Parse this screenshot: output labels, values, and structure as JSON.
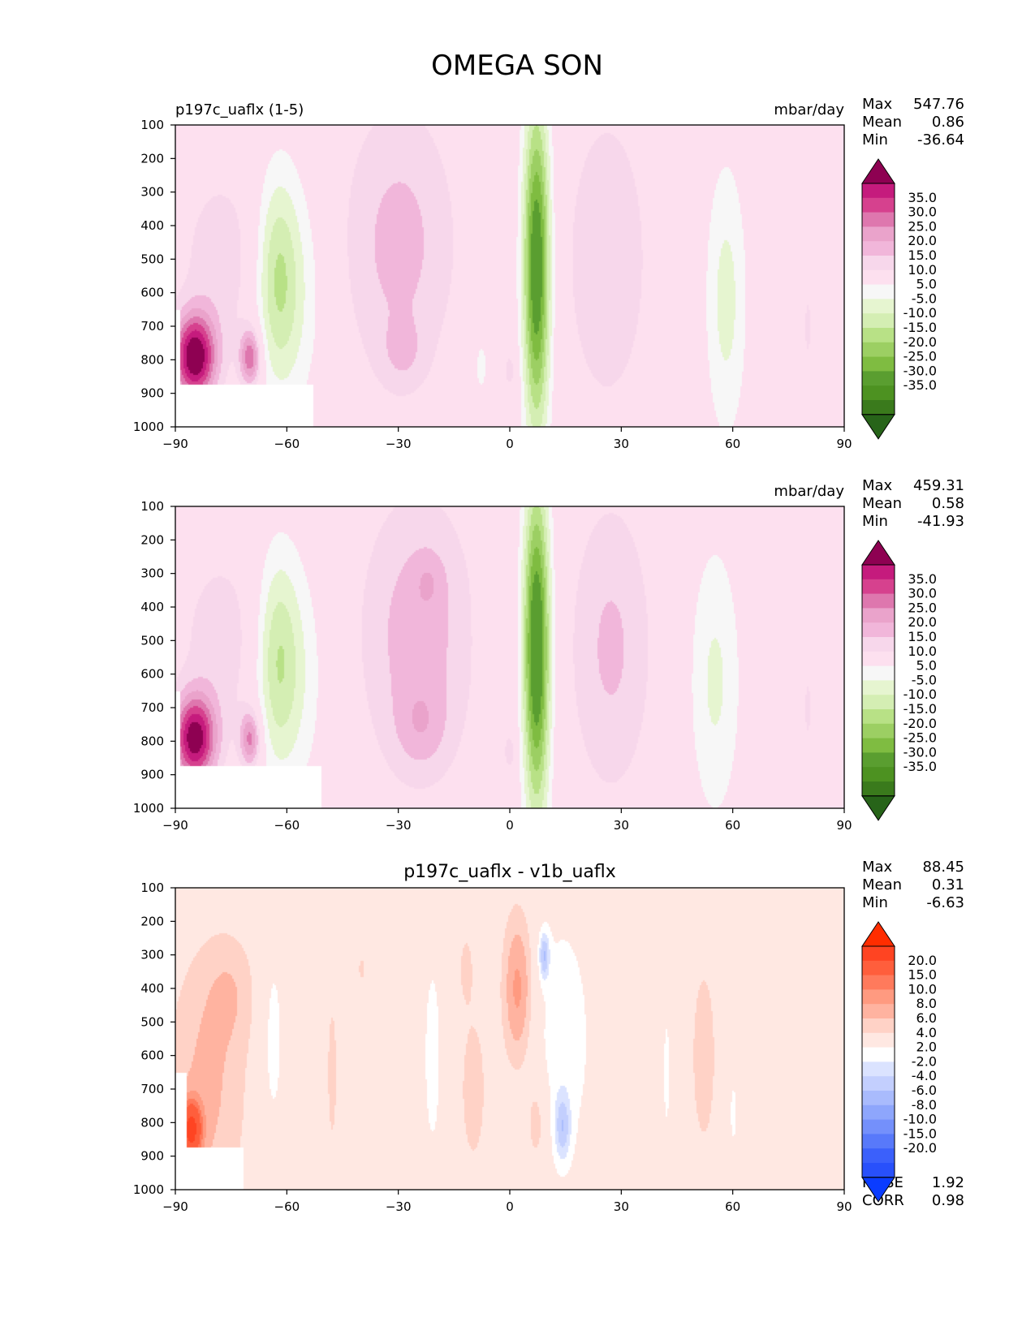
{
  "figure": {
    "title": "OMEGA SON"
  },
  "chart_data": [
    {
      "type": "heatmap",
      "title": "p197c_uaflx (1-5)",
      "units": "mbar/day",
      "stats": {
        "max_label": "Max",
        "max": "547.76",
        "mean_label": "Mean",
        "mean": "0.86",
        "min_label": "Min",
        "min": "-36.64"
      },
      "x_ticks": [
        "−90",
        "−60",
        "−30",
        "0",
        "30",
        "60",
        "90"
      ],
      "y_ticks": [
        "100",
        "200",
        "300",
        "400",
        "500",
        "600",
        "700",
        "800",
        "900",
        "1000"
      ],
      "xlim": [
        -90,
        90
      ],
      "ylim": [
        1000,
        100
      ],
      "colorbar": {
        "labels": [
          "35.0",
          "30.0",
          "25.0",
          "20.0",
          "15.0",
          "10.0",
          "5.0",
          "-5.0",
          "-10.0",
          "-15.0",
          "-20.0",
          "-25.0",
          "-30.0",
          "-35.0"
        ],
        "top_color": "#8e0152",
        "bottom_color": "#276419",
        "colors": [
          "#c51b7d",
          "#d6418e",
          "#de77ae",
          "#eaa3cb",
          "#f1b6da",
          "#f7d7eb",
          "#fde0ef",
          "#f7f7f7",
          "#e6f5d0",
          "#d4eeb3",
          "#b8e186",
          "#9ccf63",
          "#7fbc41",
          "#5a9e30",
          "#4d9221",
          "#3a7a1c"
        ]
      },
      "fields": [
        {
          "x": -85,
          "p": 790,
          "sx": 4,
          "sy": 90,
          "v": 40
        },
        {
          "x": -70,
          "p": 790,
          "sx": 2,
          "sy": 60,
          "v": 25
        },
        {
          "x": -78,
          "p": 500,
          "sx": 8,
          "sy": 200,
          "v": 8
        },
        {
          "x": -63,
          "p": 550,
          "sx": 4,
          "sy": 220,
          "v": -16
        },
        {
          "x": -58,
          "p": 600,
          "sx": 6,
          "sy": 260,
          "v": -9
        },
        {
          "x": -30,
          "p": 450,
          "sx": 11,
          "sy": 300,
          "v": 12
        },
        {
          "x": -29,
          "p": 780,
          "sx": 4,
          "sy": 70,
          "v": 6
        },
        {
          "x": -6,
          "p": 400,
          "sx": 2,
          "sy": 200,
          "v": -6
        },
        {
          "x": -8,
          "p": 820,
          "sx": 1.5,
          "sy": 70,
          "v": -7
        },
        {
          "x": 0,
          "p": 830,
          "sx": 1.5,
          "sy": 50,
          "v": 7
        },
        {
          "x": 7,
          "p": 520,
          "sx": 2.6,
          "sy": 350,
          "v": -42
        },
        {
          "x": 26,
          "p": 500,
          "sx": 8,
          "sy": 320,
          "v": 10
        },
        {
          "x": 58,
          "p": 620,
          "sx": 4,
          "sy": 300,
          "v": -12
        },
        {
          "x": 80,
          "p": 700,
          "sx": 1,
          "sy": 110,
          "v": 6
        }
      ]
    },
    {
      "type": "heatmap",
      "title": "",
      "units": "mbar/day",
      "stats": {
        "max_label": "Max",
        "max": "459.31",
        "mean_label": "Mean",
        "mean": "0.58",
        "min_label": "Min",
        "min": "-41.93"
      },
      "x_ticks": [
        "−90",
        "−60",
        "−30",
        "0",
        "30",
        "60",
        "90"
      ],
      "y_ticks": [
        "100",
        "200",
        "300",
        "400",
        "500",
        "600",
        "700",
        "800",
        "900",
        "1000"
      ],
      "xlim": [
        -90,
        90
      ],
      "ylim": [
        1000,
        100
      ],
      "colorbar": {
        "labels": [
          "35.0",
          "30.0",
          "25.0",
          "20.0",
          "15.0",
          "10.0",
          "5.0",
          "-5.0",
          "-10.0",
          "-15.0",
          "-20.0",
          "-25.0",
          "-30.0",
          "-35.0"
        ],
        "top_color": "#8e0152",
        "bottom_color": "#276419",
        "colors": [
          "#c51b7d",
          "#d6418e",
          "#de77ae",
          "#eaa3cb",
          "#f1b6da",
          "#f7d7eb",
          "#fde0ef",
          "#f7f7f7",
          "#e6f5d0",
          "#d4eeb3",
          "#b8e186",
          "#9ccf63",
          "#7fbc41",
          "#5a9e30",
          "#4d9221",
          "#3a7a1c"
        ]
      },
      "fields": [
        {
          "x": -85,
          "p": 790,
          "sx": 4,
          "sy": 90,
          "v": 38
        },
        {
          "x": -70,
          "p": 790,
          "sx": 2,
          "sy": 60,
          "v": 22
        },
        {
          "x": -78,
          "p": 500,
          "sx": 8,
          "sy": 200,
          "v": 8
        },
        {
          "x": -63,
          "p": 550,
          "sx": 4,
          "sy": 220,
          "v": -15
        },
        {
          "x": -58,
          "p": 600,
          "sx": 6,
          "sy": 260,
          "v": -9
        },
        {
          "x": -25,
          "p": 480,
          "sx": 11,
          "sy": 300,
          "v": 13
        },
        {
          "x": -24,
          "p": 760,
          "sx": 5,
          "sy": 90,
          "v": 7
        },
        {
          "x": -22,
          "p": 320,
          "sx": 3,
          "sy": 60,
          "v": 5
        },
        {
          "x": -6,
          "p": 400,
          "sx": 2,
          "sy": 200,
          "v": -6
        },
        {
          "x": 0,
          "p": 830,
          "sx": 1.5,
          "sy": 50,
          "v": 7
        },
        {
          "x": 7,
          "p": 520,
          "sx": 2.6,
          "sy": 350,
          "v": -44
        },
        {
          "x": 27,
          "p": 520,
          "sx": 8,
          "sy": 320,
          "v": 11
        },
        {
          "x": 55,
          "p": 620,
          "sx": 5,
          "sy": 300,
          "v": -11
        },
        {
          "x": 80,
          "p": 700,
          "sx": 1,
          "sy": 110,
          "v": 6
        }
      ]
    },
    {
      "type": "heatmap",
      "title": "p197c_uaflx - v1b_uaflx",
      "units": "",
      "stats": {
        "max_label": "Max",
        "max": "88.45",
        "mean_label": "Mean",
        "mean": "0.31",
        "min_label": "Min",
        "min": "-6.63"
      },
      "metrics": {
        "rmse_label": "RMSE",
        "rmse": "1.92",
        "corr_label": "CORR",
        "corr": "0.98"
      },
      "x_ticks": [
        "−90",
        "−60",
        "−30",
        "0",
        "30",
        "60",
        "90"
      ],
      "y_ticks": [
        "100",
        "200",
        "300",
        "400",
        "500",
        "600",
        "700",
        "800",
        "900",
        "1000"
      ],
      "xlim": [
        -90,
        90
      ],
      "ylim": [
        1000,
        100
      ],
      "colorbar": {
        "labels": [
          "20.0",
          "15.0",
          "10.0",
          "8.0",
          "6.0",
          "4.0",
          "2.0",
          "-2.0",
          "-4.0",
          "-6.0",
          "-8.0",
          "-10.0",
          "-15.0",
          "-20.0"
        ],
        "top_color": "#ff2d00",
        "bottom_color": "#0a3cff",
        "colors": [
          "#ff4422",
          "#ff5e3c",
          "#ff7a5c",
          "#ff9a80",
          "#ffb3a0",
          "#ffd2c6",
          "#ffe8e2",
          "#ffffff",
          "#dbe3ff",
          "#c3cffe",
          "#a9bbfd",
          "#8ea6fc",
          "#7490fb",
          "#5879fa",
          "#3b60fb",
          "#2850fb"
        ]
      },
      "fields": [
        {
          "x": -82,
          "p": 700,
          "sx": 8,
          "sy": 300,
          "v": 4.5
        },
        {
          "x": -86,
          "p": 820,
          "sx": 2,
          "sy": 60,
          "v": 14
        },
        {
          "x": -75,
          "p": 400,
          "sx": 5,
          "sy": 120,
          "v": 2.5
        },
        {
          "x": -64,
          "p": 550,
          "sx": 2.5,
          "sy": 250,
          "v": -3
        },
        {
          "x": -48,
          "p": 650,
          "sx": 1.5,
          "sy": 250,
          "v": 2.5
        },
        {
          "x": -40,
          "p": 340,
          "sx": 1,
          "sy": 40,
          "v": 2.5
        },
        {
          "x": -21,
          "p": 600,
          "sx": 2,
          "sy": 250,
          "v": -3
        },
        {
          "x": -12,
          "p": 330,
          "sx": 1.5,
          "sy": 80,
          "v": 2.5
        },
        {
          "x": -10,
          "p": 700,
          "sx": 3,
          "sy": 200,
          "v": 3
        },
        {
          "x": 2,
          "p": 400,
          "sx": 3,
          "sy": 170,
          "v": 7
        },
        {
          "x": 7,
          "p": 800,
          "sx": 2,
          "sy": 100,
          "v": 4
        },
        {
          "x": 14,
          "p": 550,
          "sx": 7,
          "sy": 330,
          "v": -3
        },
        {
          "x": 9,
          "p": 300,
          "sx": 1,
          "sy": 50,
          "v": -7
        },
        {
          "x": 14,
          "p": 810,
          "sx": 1.5,
          "sy": 70,
          "v": -6
        },
        {
          "x": 42,
          "p": 650,
          "sx": 1,
          "sy": 200,
          "v": -2.5
        },
        {
          "x": 52,
          "p": 600,
          "sx": 3,
          "sy": 250,
          "v": 3
        },
        {
          "x": 60,
          "p": 770,
          "sx": 0.8,
          "sy": 80,
          "v": -3
        }
      ]
    }
  ]
}
